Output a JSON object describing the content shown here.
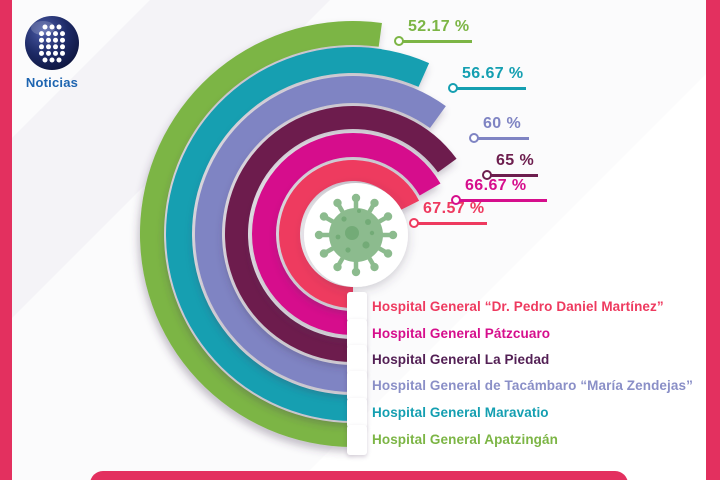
{
  "frame": {
    "color": "#e3305f"
  },
  "logo": {
    "text": "Noticias",
    "text_color": "#1d64b0",
    "sphere_color_dark": "#141c4e",
    "sphere_color_light": "#3d4d96"
  },
  "center_icon": {
    "name": "coronavirus-icon",
    "color": "#8cbb8e",
    "detail_color": "#6fa873"
  },
  "chart_data": {
    "type": "bar",
    "subtype": "radial-concentric-rings",
    "title": "",
    "unit": "%",
    "start_angle": "bottom",
    "direction": "clockwise",
    "degrees_per_percent": 3.6,
    "legend_position": "bottom-right",
    "value_labels_position": "top-right",
    "categories": [
      "Hospital General “Dr. Pedro Daniel Martínez”",
      "Hospital General Pátzcuaro",
      "Hospital General La Piedad",
      "Hospital General de Tacámbaro “María Zendejas”",
      "Hospital General Maravatio",
      "Hospital General Apatzingán"
    ],
    "values": [
      67.57,
      66.67,
      65,
      60,
      56.67,
      52.17
    ],
    "series": [
      {
        "name": "Hospital General “Dr. Pedro Daniel Martínez”",
        "value": 67.57,
        "label": "67.57 %",
        "color": "#ee3a5f",
        "legend_text_color": "#ee3a5f"
      },
      {
        "name": "Hospital General Pátzcuaro",
        "value": 66.67,
        "label": "66.67 %",
        "color": "#d60e8c",
        "legend_text_color": "#d60e8c"
      },
      {
        "name": "Hospital General La Piedad",
        "value": 65,
        "label": "65 %",
        "color": "#6d1e4e",
        "legend_text_color": "#532055"
      },
      {
        "name": "Hospital General de Tacámbaro “María Zendejas”",
        "value": 60,
        "label": "60 %",
        "color": "#7f84c3",
        "legend_text_color": "#8a8fc7"
      },
      {
        "name": "Hospital General Maravatio",
        "value": 56.67,
        "label": "56.67 %",
        "color": "#149fb1",
        "legend_text_color": "#149fb1"
      },
      {
        "name": "Hospital General Apatzingán",
        "value": 52.17,
        "label": "52.17 %",
        "color": "#7cb545",
        "legend_text_color": "#7cb545"
      }
    ]
  }
}
